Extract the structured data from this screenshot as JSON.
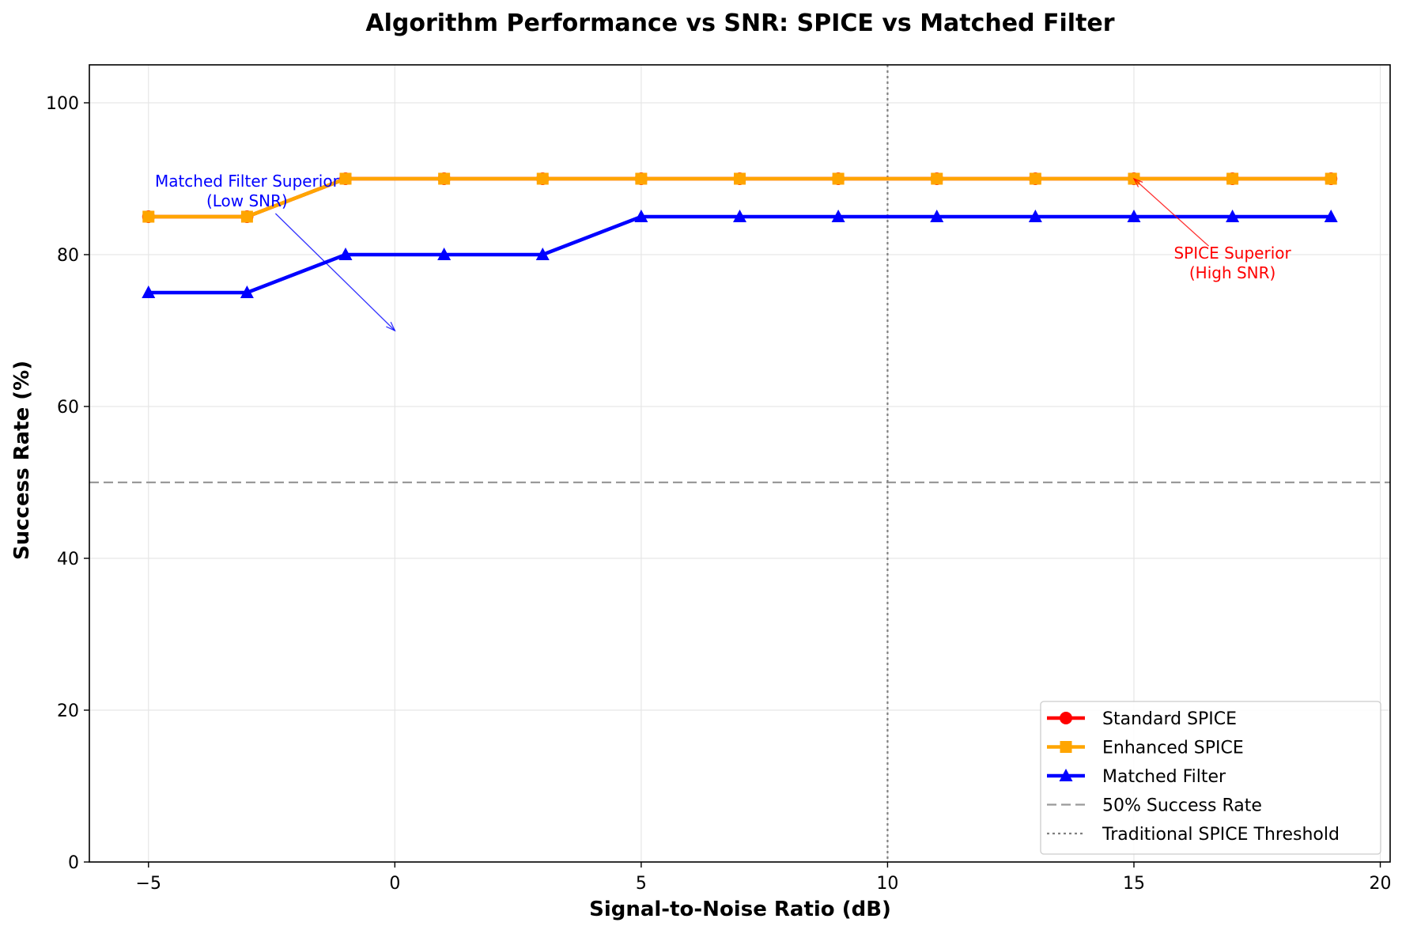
{
  "chart_data": {
    "type": "line",
    "title": "Algorithm Performance vs SNR: SPICE vs Matched Filter",
    "xlabel": "Signal-to-Noise Ratio (dB)",
    "ylabel": "Success Rate (%)",
    "xlim": [
      -6.2,
      20.2
    ],
    "ylim": [
      0,
      105
    ],
    "xticks": [
      -5,
      0,
      5,
      10,
      15,
      20
    ],
    "xtick_labels": [
      "−5",
      "0",
      "5",
      "10",
      "15",
      "20"
    ],
    "yticks": [
      0,
      20,
      40,
      60,
      80,
      100
    ],
    "ytick_labels": [
      "0",
      "20",
      "40",
      "60",
      "80",
      "100"
    ],
    "grid": true,
    "legend_position": "lower-right",
    "x": [
      -5,
      -3,
      -1,
      1,
      3,
      5,
      7,
      9,
      11,
      13,
      15,
      17,
      19
    ],
    "series": [
      {
        "name": "Standard SPICE",
        "color": "#ff0000",
        "marker": "circle",
        "values": [
          85,
          85,
          90,
          90,
          90,
          90,
          90,
          90,
          90,
          90,
          90,
          90,
          90
        ]
      },
      {
        "name": "Enhanced SPICE",
        "color": "#ffa500",
        "marker": "square",
        "values": [
          85,
          85,
          90,
          90,
          90,
          90,
          90,
          90,
          90,
          90,
          90,
          90,
          90
        ]
      },
      {
        "name": "Matched Filter",
        "color": "#0000ff",
        "marker": "triangle",
        "values": [
          75,
          75,
          80,
          80,
          80,
          85,
          85,
          85,
          85,
          85,
          85,
          85,
          85
        ]
      }
    ],
    "reference_lines": [
      {
        "name": "50% Success Rate",
        "orientation": "horizontal",
        "value": 50,
        "style": "dashed",
        "color": "#999999"
      },
      {
        "name": "Traditional SPICE Threshold",
        "orientation": "vertical",
        "value": 10,
        "style": "dotted",
        "color": "#808080"
      }
    ],
    "annotations": [
      {
        "lines": [
          "Matched Filter Superior",
          "(Low SNR)"
        ],
        "color": "#0000ff",
        "text_at": [
          -3,
          87.5
        ],
        "arrow_to": [
          0,
          70
        ]
      },
      {
        "lines": [
          "SPICE Superior",
          "(High SNR)"
        ],
        "color": "#ff0000",
        "text_at": [
          17,
          78
        ],
        "arrow_to": [
          15,
          90
        ]
      }
    ]
  }
}
